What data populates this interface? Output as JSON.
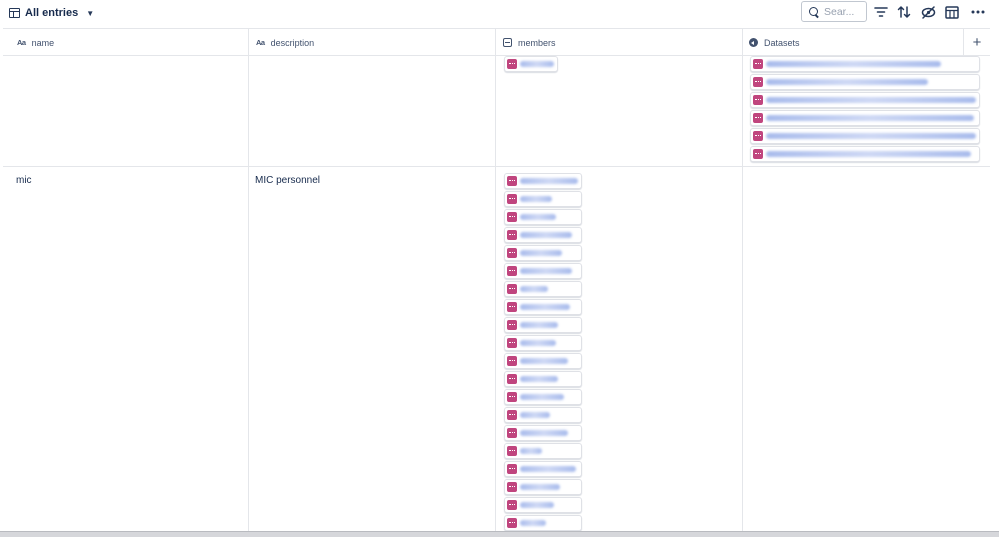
{
  "toolbar": {
    "view_label": "All entries",
    "search_placeholder": "Sear...",
    "icons": [
      "table-icon",
      "chevron-down-icon",
      "search-icon",
      "filter-icon",
      "sort-icon",
      "hide-fields-icon",
      "layout-icon",
      "more-icon"
    ]
  },
  "columns": [
    {
      "type_icon": "text-type-icon",
      "type_glyph": "Aa",
      "label": "name"
    },
    {
      "type_icon": "text-type-icon",
      "type_glyph": "Aa",
      "label": "description"
    },
    {
      "type_icon": "member-type-icon",
      "label": "members"
    },
    {
      "type_icon": "dataset-type-icon",
      "label": "Datasets"
    }
  ],
  "add_column_glyph": "+",
  "rows": [
    {
      "name": "",
      "description": "",
      "members_count_visible": 1,
      "datasets_count_visible": 6
    },
    {
      "name": "mic",
      "description": "MIC personnel",
      "members_count_visible": 20,
      "datasets_count_visible": 0
    }
  ],
  "colors": {
    "chip_icon": "#c0457e",
    "blurred_text": "#9fb4ea",
    "grid_line": "#e4e6ea",
    "text": "#172b4d"
  }
}
